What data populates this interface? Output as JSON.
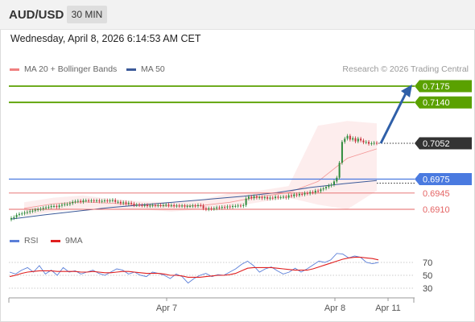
{
  "header": {
    "symbol": "AUD/USD",
    "timeframe": "30 MIN"
  },
  "datetime": "Wednesday, April 8, 2026 6:14:53 AM CET",
  "legend": {
    "bollinger": "MA 20 + Bollinger Bands",
    "ma50": "MA 50"
  },
  "copyright": "Research © 2026 Trading Central",
  "rsi_legend": {
    "rsi": "RSI",
    "ma9": "9MA"
  },
  "colors": {
    "resistance": "#5aa100",
    "support": "#4a7ae0",
    "minor_support": "#e46464",
    "bollinger": "#f08080",
    "ma50": "#3c5a99",
    "rsi": "#5b7fd8",
    "rsi_ma": "#e02020",
    "arrow": "#2f5fa8",
    "bull": "#2e8b3c",
    "bear": "#c8323c"
  },
  "chart_data": [
    {
      "type": "line",
      "title": "AUD/USD 30 MIN",
      "x_labels": [
        "Apr 7",
        "Apr 8",
        "Apr 11"
      ],
      "ylim": [
        0.6882,
        0.7188
      ],
      "current_price": {
        "value": 0.7052,
        "label": "0.7052"
      },
      "levels": [
        {
          "value": 0.7175,
          "label": "0.7175",
          "kind": "resistance"
        },
        {
          "value": 0.714,
          "label": "0.7140",
          "kind": "resistance"
        },
        {
          "value": 0.6975,
          "label": "0.6975",
          "kind": "support"
        },
        {
          "value": 0.6945,
          "label": "0.6945",
          "kind": "minor_support"
        },
        {
          "value": 0.691,
          "label": "0.6910",
          "kind": "minor_support"
        }
      ],
      "arrow": {
        "from": 0.7052,
        "to": 0.7175
      },
      "close_series": [
        0.6891,
        0.6893,
        0.6898,
        0.69,
        0.6901,
        0.6903,
        0.6904,
        0.6906,
        0.6907,
        0.6909,
        0.691,
        0.6911,
        0.6913,
        0.6914,
        0.6915,
        0.6917,
        0.6917,
        0.6915,
        0.6918,
        0.692,
        0.6921,
        0.6921,
        0.6923,
        0.6926,
        0.6927,
        0.6928,
        0.6926,
        0.6929,
        0.6929,
        0.6928,
        0.6929,
        0.6928,
        0.6929,
        0.6927,
        0.6928,
        0.6929,
        0.6928,
        0.6929,
        0.693,
        0.6926,
        0.6926,
        0.6923,
        0.6925,
        0.6922,
        0.6924,
        0.6922,
        0.6919,
        0.692,
        0.6919,
        0.6918,
        0.6919,
        0.6917,
        0.6918,
        0.6919,
        0.6918,
        0.6919,
        0.6918,
        0.6919,
        0.692,
        0.6918,
        0.6919,
        0.6917,
        0.6918,
        0.6917,
        0.6918,
        0.6916,
        0.6917,
        0.6917,
        0.6918,
        0.6917,
        0.6919,
        0.6918,
        0.6912,
        0.691,
        0.6912,
        0.6911,
        0.6912,
        0.6914,
        0.6913,
        0.6915,
        0.6914,
        0.6916,
        0.6915,
        0.6917,
        0.6917,
        0.6918,
        0.6917,
        0.6919,
        0.6933,
        0.6937,
        0.6934,
        0.6938,
        0.6935,
        0.6936,
        0.6934,
        0.6936,
        0.6933,
        0.6935,
        0.6934,
        0.6937,
        0.6935,
        0.6936,
        0.6937,
        0.6935,
        0.694,
        0.6938,
        0.6942,
        0.694,
        0.6943,
        0.6942,
        0.6945,
        0.6944,
        0.6947,
        0.6946,
        0.695,
        0.6949,
        0.6953,
        0.6955,
        0.6958,
        0.6961,
        0.6963,
        0.697,
        0.6978,
        0.701,
        0.7055,
        0.7062,
        0.7068,
        0.706,
        0.7063,
        0.7056,
        0.7062,
        0.7058,
        0.7054,
        0.7055,
        0.7051,
        0.7052,
        0.7053,
        0.7052
      ],
      "ma50": [
        0.6889,
        0.6898,
        0.6906,
        0.6914,
        0.692,
        0.6926,
        0.6932,
        0.6938,
        0.6946,
        0.6957,
        0.6965,
        0.6972
      ],
      "bollinger_mid": [
        0.6912,
        0.6922,
        0.6926,
        0.6923,
        0.6919,
        0.6917,
        0.6918,
        0.6925,
        0.6937,
        0.6946,
        0.697,
        0.702,
        0.704
      ],
      "bollinger_upper": [
        0.6925,
        0.6935,
        0.694,
        0.6932,
        0.6927,
        0.6925,
        0.693,
        0.6945,
        0.695,
        0.696,
        0.709,
        0.71,
        0.7095
      ],
      "bollinger_lower": [
        0.6895,
        0.6905,
        0.6912,
        0.6912,
        0.691,
        0.6905,
        0.691,
        0.6915,
        0.6925,
        0.6935,
        0.692,
        0.691,
        0.695
      ]
    },
    {
      "type": "line",
      "title": "RSI",
      "ylim": [
        20,
        95
      ],
      "y_ticks": [
        "70",
        "50",
        "30"
      ],
      "rsi": [
        55,
        52,
        58,
        62,
        55,
        65,
        52,
        58,
        50,
        62,
        55,
        57,
        52,
        55,
        58,
        53,
        50,
        55,
        60,
        58,
        52,
        55,
        50,
        48,
        55,
        53,
        50,
        45,
        52,
        48,
        38,
        45,
        50,
        53,
        48,
        51,
        50,
        55,
        60,
        67,
        72,
        65,
        55,
        60,
        63,
        57,
        52,
        55,
        61,
        55,
        60,
        66,
        72,
        70,
        74,
        84,
        83,
        77,
        80,
        78,
        70,
        68,
        70
      ],
      "rsi_ma": [
        48,
        50,
        53,
        55,
        56,
        57,
        57,
        57,
        56,
        56,
        56,
        56,
        55,
        55,
        56,
        55,
        54,
        54,
        55,
        56,
        56,
        55,
        54,
        53,
        53,
        53,
        52,
        50,
        50,
        49,
        47,
        47,
        47,
        48,
        49,
        50,
        50,
        51,
        53,
        57,
        61,
        62,
        62,
        62,
        62,
        61,
        60,
        59,
        58,
        58,
        58,
        60,
        63,
        66,
        69,
        72,
        75,
        77,
        78,
        78,
        77,
        76,
        74
      ]
    }
  ]
}
